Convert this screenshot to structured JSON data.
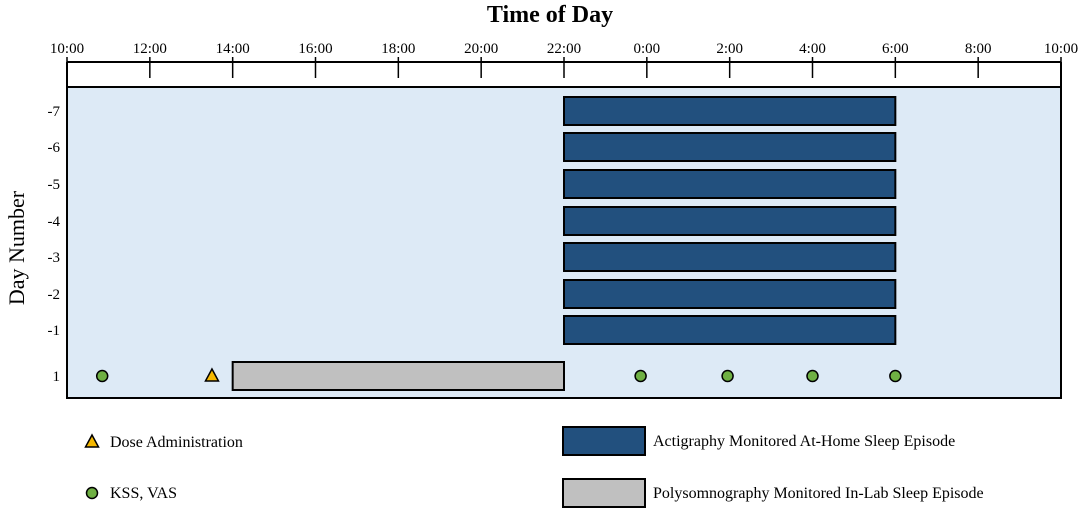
{
  "chart_data": {
    "type": "timeline",
    "title": "Time of Day",
    "ylabel": "Day Number",
    "x_tick_labels": [
      "10:00",
      "12:00",
      "14:00",
      "16:00",
      "18:00",
      "20:00",
      "22:00",
      "0:00",
      "2:00",
      "4:00",
      "6:00",
      "8:00",
      "10:00"
    ],
    "x_range_hours": [
      10,
      34
    ],
    "y_categories": [
      "-7",
      "-6",
      "-5",
      "-4",
      "-3",
      "-2",
      "-1",
      "1"
    ],
    "colors": {
      "background": "#ddeaf6",
      "actigraphy": "#22507e",
      "polysomnography": "#c0c0c0",
      "dose": "#f5b800",
      "kss": "#6fb043"
    },
    "series": [
      {
        "name": "Actigraphy Monitored At-Home Sleep Episode",
        "kind": "interval",
        "intervals": [
          {
            "day": "-7",
            "start": 22,
            "end": 30
          },
          {
            "day": "-6",
            "start": 22,
            "end": 30
          },
          {
            "day": "-5",
            "start": 22,
            "end": 30
          },
          {
            "day": "-4",
            "start": 22,
            "end": 30
          },
          {
            "day": "-3",
            "start": 22,
            "end": 30
          },
          {
            "day": "-2",
            "start": 22,
            "end": 30
          },
          {
            "day": "-1",
            "start": 22,
            "end": 30
          }
        ]
      },
      {
        "name": "Polysomnography Monitored In-Lab Sleep Episode",
        "kind": "interval",
        "intervals": [
          {
            "day": "1",
            "start": 14,
            "end": 22
          }
        ]
      },
      {
        "name": "Dose Administration",
        "kind": "marker",
        "shape": "triangle",
        "points": [
          {
            "day": "1",
            "time": 13.5
          }
        ]
      },
      {
        "name": "KSS, VAS",
        "kind": "marker",
        "shape": "circle",
        "points": [
          {
            "day": "1",
            "time": 10.85
          },
          {
            "day": "1",
            "time": 23.85
          },
          {
            "day": "1",
            "time": 25.95
          },
          {
            "day": "1",
            "time": 28.0
          },
          {
            "day": "1",
            "time": 30.0
          }
        ]
      }
    ],
    "legend": [
      {
        "label": "Dose Administration",
        "symbol": "triangle",
        "position": "bottom-left"
      },
      {
        "label": "KSS, VAS",
        "symbol": "circle",
        "position": "bottom-left"
      },
      {
        "label": "Actigraphy Monitored At-Home Sleep Episode",
        "symbol": "actigraphy-box",
        "position": "bottom-right"
      },
      {
        "label": "Polysomnography Monitored In-Lab Sleep Episode",
        "symbol": "polysomnography-box",
        "position": "bottom-right"
      }
    ]
  }
}
